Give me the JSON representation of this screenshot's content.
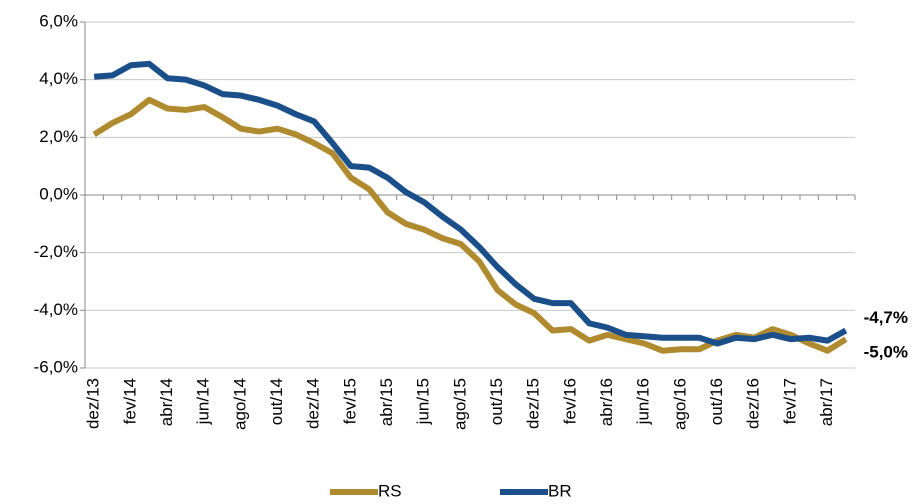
{
  "chart_data": {
    "type": "line",
    "categories": [
      "dez/13",
      null,
      "fev/14",
      null,
      "abr/14",
      null,
      "jun/14",
      null,
      "ago/14",
      null,
      "out/14",
      null,
      "dez/14",
      null,
      "fev/15",
      null,
      "abr/15",
      null,
      "jun/15",
      null,
      "ago/15",
      null,
      "out/15",
      null,
      "dez/15",
      null,
      "fev/16",
      null,
      "abr/16",
      null,
      "jun/16",
      null,
      "ago/16",
      null,
      "out/16",
      null,
      "dez/16",
      null,
      "fev/17",
      null,
      "abr/17",
      null
    ],
    "series": [
      {
        "name": "RS",
        "color": "#b08a2e",
        "values": [
          2.1,
          2.5,
          2.8,
          3.3,
          3.0,
          2.95,
          3.05,
          2.7,
          2.3,
          2.2,
          2.3,
          2.1,
          1.8,
          1.45,
          0.6,
          0.2,
          -0.6,
          -1.0,
          -1.2,
          -1.5,
          -1.7,
          -2.3,
          -3.3,
          -3.8,
          -4.1,
          -4.7,
          -4.65,
          -5.05,
          -4.85,
          -5.0,
          -5.15,
          -5.4,
          -5.35,
          -5.35,
          -5.05,
          -4.85,
          -4.95,
          -4.65,
          -4.85,
          -5.15,
          -5.4,
          -5.0
        ],
        "value_labels": [
          null,
          null,
          null,
          null,
          null,
          null,
          null,
          null,
          null,
          null,
          null,
          null,
          null,
          null,
          null,
          null,
          null,
          null,
          null,
          null,
          null,
          null,
          null,
          null,
          null,
          null,
          null,
          null,
          null,
          null,
          null,
          null,
          null,
          null,
          null,
          null,
          null,
          null,
          null,
          null,
          null,
          "-5,0%"
        ]
      },
      {
        "name": "BR",
        "color": "#1b4f8a",
        "values": [
          4.1,
          4.15,
          4.5,
          4.55,
          4.05,
          4.0,
          3.8,
          3.5,
          3.45,
          3.3,
          3.1,
          2.8,
          2.55,
          1.8,
          1.0,
          0.95,
          0.6,
          0.1,
          -0.25,
          -0.75,
          -1.2,
          -1.8,
          -2.5,
          -3.1,
          -3.6,
          -3.75,
          -3.75,
          -4.45,
          -4.6,
          -4.85,
          -4.9,
          -4.95,
          -4.95,
          -4.95,
          -5.15,
          -4.95,
          -5.0,
          -4.85,
          -5.0,
          -4.95,
          -5.05,
          -4.7
        ],
        "value_labels": [
          null,
          null,
          null,
          null,
          null,
          null,
          null,
          null,
          null,
          null,
          null,
          null,
          null,
          null,
          null,
          null,
          null,
          null,
          null,
          null,
          null,
          null,
          null,
          null,
          null,
          null,
          null,
          null,
          null,
          null,
          null,
          null,
          null,
          null,
          null,
          null,
          null,
          null,
          null,
          null,
          null,
          "-4,7%"
        ]
      }
    ],
    "ylim": [
      -6,
      6
    ],
    "yticks": [
      {
        "value": -6,
        "label": "-6,0%"
      },
      {
        "value": -4,
        "label": "-4,0%"
      },
      {
        "value": -2,
        "label": "-2,0%"
      },
      {
        "value": 0,
        "label": "0,0%"
      },
      {
        "value": 2,
        "label": "2,0%"
      },
      {
        "value": 4,
        "label": "4,0%"
      },
      {
        "value": 6,
        "label": "6,0%"
      }
    ],
    "grid": true
  }
}
